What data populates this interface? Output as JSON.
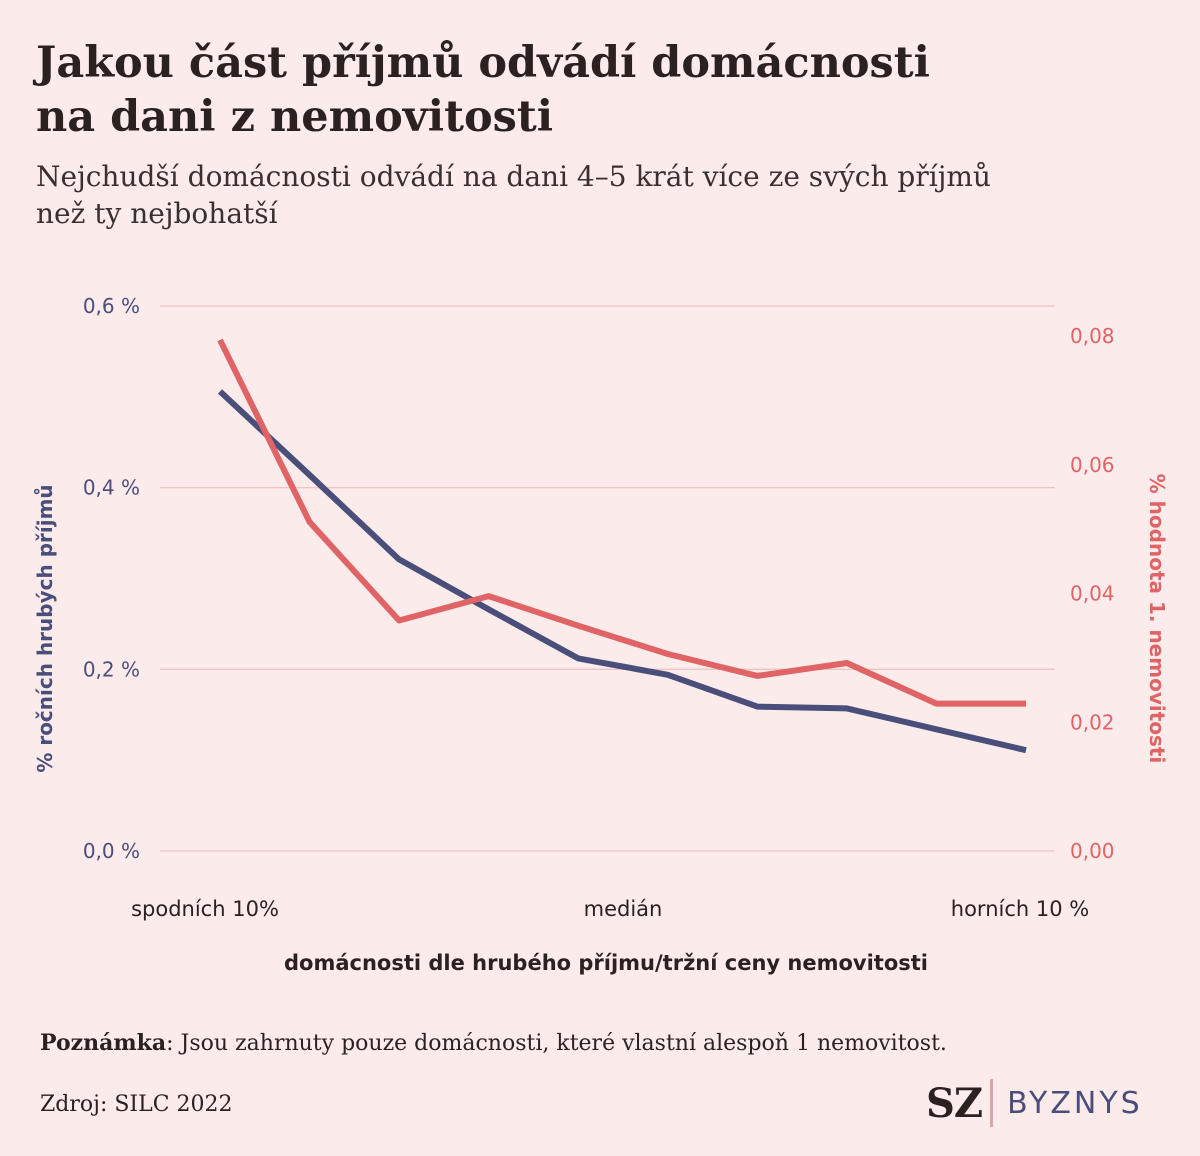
{
  "title_line1": "Jakou část příjmů odvádí domácnosti",
  "title_line2": "na dani z nemovitosti",
  "subtitle_line1": "Nejchudší domácnosti odvádí na dani 4–5 krát více ze svých příjmů",
  "subtitle_line2": "než ty nejbohatší",
  "note_label": "Poznámka",
  "note_text": ": Jsou zahrnuty pouze domácnosti, které vlastní alespoň 1 nemovitost.",
  "source": "Zdroj: SILC 2022",
  "logo": {
    "sz": "SZ",
    "byznys": "BYZNYS"
  },
  "colors": {
    "left_series": "#4a4e7a",
    "right_series": "#e06366",
    "gridline": "#f0c4c4",
    "background": "#fcebeb"
  },
  "chart_data": {
    "type": "line",
    "x": [
      1,
      2,
      3,
      4,
      5,
      6,
      7,
      8,
      9,
      10
    ],
    "x_ticks": [
      {
        "x": 1,
        "label": "spodních 10%"
      },
      {
        "x": 5.5,
        "label": "medián"
      },
      {
        "x": 10,
        "label": "horních 10 %"
      }
    ],
    "xlabel": "domácnosti dle hrubého příjmu/tržní ceny nemovitosti",
    "ylabel_left": "% ročních hrubých příjmů",
    "ylabel_right": "% hodnota 1. nemovitosti",
    "ylim_left": [
      0,
      0.6
    ],
    "ylim_right": [
      0,
      0.085
    ],
    "yticks_left": [
      "0,0 %",
      "0,2 %",
      "0,4 %",
      "0,6 %"
    ],
    "yticks_left_values": [
      0,
      0.2,
      0.4,
      0.6
    ],
    "yticks_right": [
      "0,00",
      "0,02",
      "0,04",
      "0,06",
      "0,08"
    ],
    "yticks_right_values": [
      0,
      0.02,
      0.04,
      0.06,
      0.08
    ],
    "grid": true,
    "series": [
      {
        "axis": "left",
        "values": [
          0.506,
          0.414,
          0.321,
          0.266,
          0.212,
          0.194,
          0.159,
          0.157,
          0.134,
          0.111
        ]
      },
      {
        "axis": "right",
        "values": [
          0.0794,
          0.0511,
          0.0358,
          0.0396,
          0.035,
          0.0306,
          0.0272,
          0.0292,
          0.0229,
          0.0229
        ]
      }
    ]
  }
}
